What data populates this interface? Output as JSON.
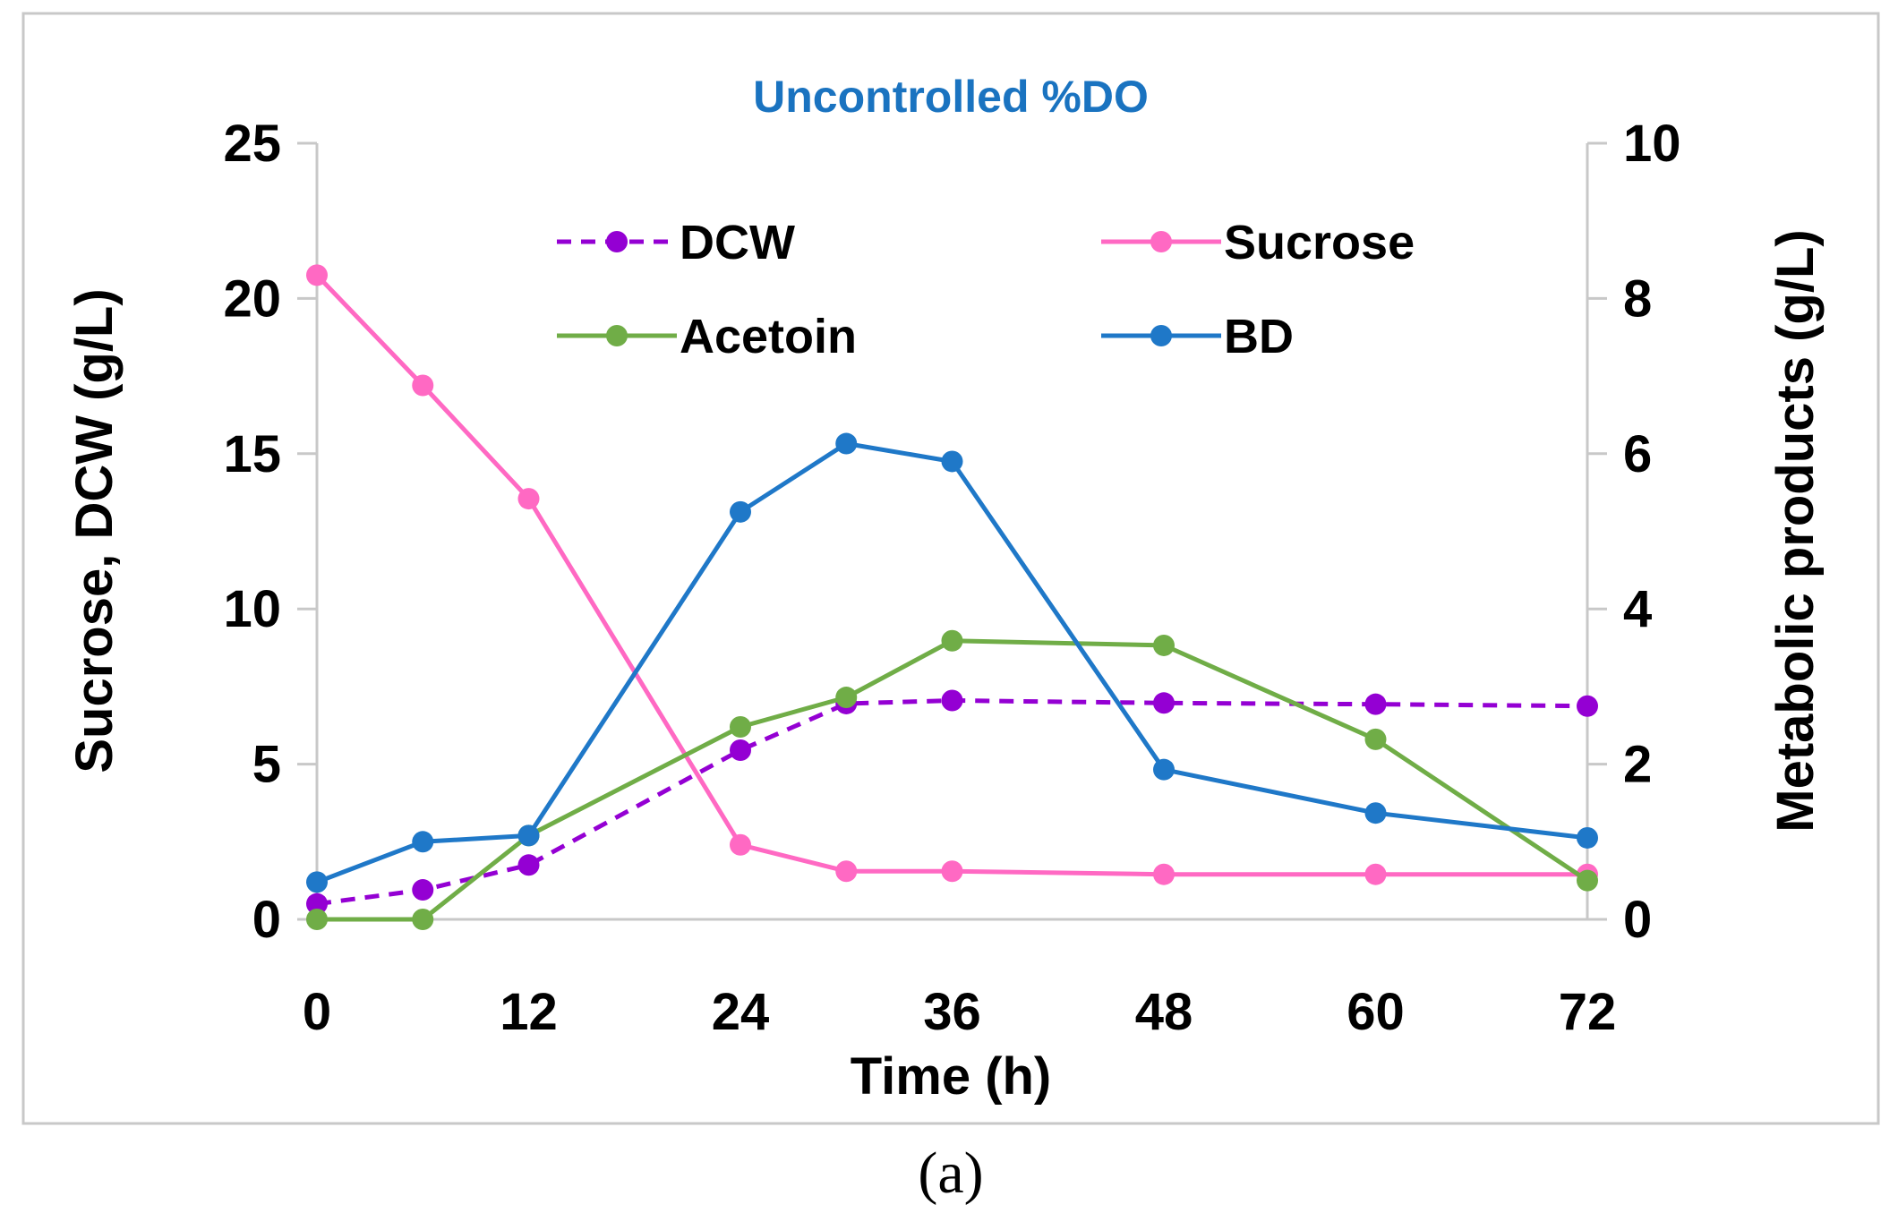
{
  "caption": "(a)",
  "chart_data": {
    "type": "line",
    "title": "Uncontrolled %DO",
    "xlabel": "Time (h)",
    "ylabel_left": "Sucrose, DCW  (g/L)",
    "ylabel_right": "Metabolic products (g/L)",
    "xlim": [
      0,
      72
    ],
    "ylim_left": [
      0,
      25
    ],
    "ylim_right": [
      0,
      10
    ],
    "x_ticks": [
      "0",
      "12",
      "24",
      "36",
      "48",
      "60",
      "72"
    ],
    "y_left_ticks": [
      "0",
      "5",
      "10",
      "15",
      "20",
      "25"
    ],
    "y_right_ticks": [
      "0",
      "2",
      "4",
      "6",
      "8",
      "10"
    ],
    "grid": false,
    "legend_position": "top-center",
    "colors": {
      "title": "#1a73c0",
      "axis": "#c8c8c8",
      "frame": "#c8c8c8"
    },
    "series": [
      {
        "name": "DCW",
        "axis": "left",
        "dashed": true,
        "color": "#9400d3",
        "x": [
          0,
          6,
          12,
          24,
          30,
          36,
          48,
          60,
          72
        ],
        "y": [
          0.5,
          0.95,
          1.75,
          5.45,
          6.95,
          7.05,
          6.97,
          6.93,
          6.87
        ]
      },
      {
        "name": "Sucrose",
        "axis": "left",
        "dashed": false,
        "color": "#ff69c3",
        "x": [
          0,
          6,
          12,
          24,
          30,
          36,
          48,
          60,
          72
        ],
        "y": [
          20.75,
          17.2,
          13.55,
          2.4,
          1.55,
          1.55,
          1.45,
          1.45,
          1.45
        ]
      },
      {
        "name": "Acetoin",
        "axis": "right",
        "dashed": false,
        "color": "#70ad47",
        "x": [
          0,
          6,
          12,
          24,
          30,
          36,
          48,
          60,
          72
        ],
        "y": [
          0.0,
          0.0,
          1.08,
          2.48,
          2.86,
          3.59,
          3.53,
          2.32,
          0.5
        ]
      },
      {
        "name": "BD",
        "axis": "right",
        "dashed": false,
        "color": "#1f78c8",
        "x": [
          0,
          6,
          12,
          24,
          30,
          36,
          48,
          60,
          72
        ],
        "y": [
          0.48,
          1.0,
          1.08,
          5.25,
          6.13,
          5.9,
          1.93,
          1.37,
          1.05
        ]
      }
    ]
  }
}
